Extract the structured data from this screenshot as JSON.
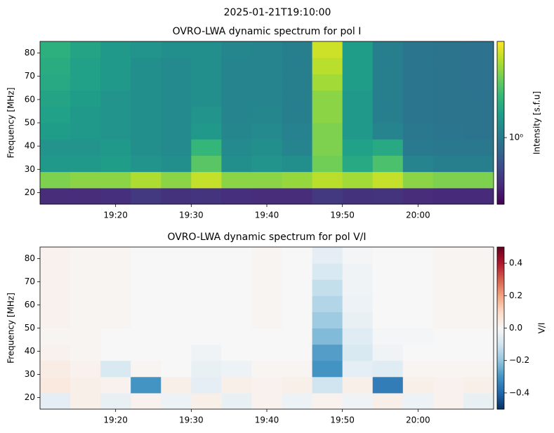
{
  "title": "2025-01-21T19:10:00",
  "chart_data": [
    {
      "type": "heatmap",
      "title": "OVRO-LWA dynamic spectrum for pol I",
      "ylabel": "Frequency [MHz]",
      "colorbar_label": "Intensity [s.f.u]",
      "colormap": "viridis",
      "color_scale": "log",
      "clim": [
        0.42,
        3.5
      ],
      "cbar_ticks": [
        {
          "value": 1,
          "label": "10⁰"
        }
      ],
      "x": [
        "19:10",
        "19:14",
        "19:18",
        "19:22",
        "19:26",
        "19:30",
        "19:34",
        "19:38",
        "19:42",
        "19:46",
        "19:50",
        "19:54",
        "19:58",
        "20:02",
        "20:06"
      ],
      "y": [
        15,
        22,
        29,
        36,
        43,
        50,
        57,
        64,
        71,
        78
      ],
      "xlim": [
        "19:10",
        "20:10"
      ],
      "xticks": [
        "19:20",
        "19:30",
        "19:40",
        "19:50",
        "20:00"
      ],
      "ylim": [
        15,
        85
      ],
      "yticks": [
        20,
        30,
        40,
        50,
        60,
        70,
        80
      ],
      "values": [
        [
          0.55,
          0.55,
          0.56,
          0.6,
          0.57,
          0.58,
          0.56,
          0.55,
          0.55,
          0.6,
          0.57,
          0.58,
          0.55,
          0.54,
          0.54
        ],
        [
          2.3,
          2.4,
          2.4,
          2.7,
          2.4,
          2.9,
          2.4,
          2.4,
          2.5,
          2.8,
          2.6,
          2.9,
          2.4,
          2.3,
          2.3
        ],
        [
          1.3,
          1.3,
          1.35,
          1.25,
          1.2,
          2.0,
          1.2,
          1.25,
          1.2,
          2.2,
          1.5,
          1.9,
          1.1,
          1.05,
          1.05
        ],
        [
          1.25,
          1.25,
          1.3,
          1.2,
          1.15,
          1.7,
          1.15,
          1.2,
          1.1,
          2.3,
          1.4,
          1.5,
          1.0,
          0.98,
          0.98
        ],
        [
          1.35,
          1.3,
          1.25,
          1.2,
          1.15,
          1.3,
          1.12,
          1.15,
          1.08,
          2.3,
          1.3,
          1.1,
          0.98,
          0.96,
          0.95
        ],
        [
          1.4,
          1.3,
          1.25,
          1.2,
          1.15,
          1.25,
          1.1,
          1.12,
          1.05,
          2.4,
          1.3,
          1.05,
          0.97,
          0.95,
          0.95
        ],
        [
          1.45,
          1.35,
          1.25,
          1.2,
          1.15,
          1.2,
          1.1,
          1.1,
          1.05,
          2.4,
          1.3,
          1.05,
          0.96,
          0.94,
          0.94
        ],
        [
          1.5,
          1.4,
          1.3,
          1.2,
          1.15,
          1.2,
          1.1,
          1.1,
          1.05,
          2.6,
          1.35,
          1.05,
          0.96,
          0.94,
          0.93
        ],
        [
          1.55,
          1.4,
          1.3,
          1.2,
          1.15,
          1.2,
          1.1,
          1.1,
          1.05,
          2.8,
          1.35,
          1.05,
          0.96,
          0.94,
          0.93
        ],
        [
          1.6,
          1.45,
          1.3,
          1.25,
          1.2,
          1.2,
          1.12,
          1.1,
          1.05,
          3.0,
          1.35,
          1.05,
          0.97,
          0.94,
          0.93
        ]
      ]
    },
    {
      "type": "heatmap",
      "title": "OVRO-LWA dynamic spectrum for pol V/I",
      "ylabel": "Frequency [MHz]",
      "colorbar_label": "V/I",
      "colormap": "RdBu_r",
      "color_scale": "linear",
      "clim": [
        -0.5,
        0.5
      ],
      "cbar_ticks": [
        {
          "value": -0.4,
          "label": "−0.4"
        },
        {
          "value": -0.2,
          "label": "−0.2"
        },
        {
          "value": 0,
          "label": "0.0"
        },
        0.2,
        0.4
      ],
      "x": [
        "19:10",
        "19:14",
        "19:18",
        "19:22",
        "19:26",
        "19:30",
        "19:34",
        "19:38",
        "19:42",
        "19:46",
        "19:50",
        "19:54",
        "19:58",
        "20:02",
        "20:06"
      ],
      "y": [
        15,
        22,
        29,
        36,
        43,
        50,
        57,
        64,
        71,
        78
      ],
      "xlim": [
        "19:10",
        "20:10"
      ],
      "xticks": [
        "19:20",
        "19:30",
        "19:40",
        "19:50",
        "20:00"
      ],
      "ylim": [
        15,
        85
      ],
      "yticks": [
        20,
        30,
        40,
        50,
        60,
        70,
        80
      ],
      "values": [
        [
          -0.05,
          0.03,
          -0.04,
          0.02,
          -0.03,
          0.03,
          -0.04,
          0.02,
          -0.03,
          0.02,
          -0.02,
          0.03,
          -0.03,
          0.02,
          -0.04
        ],
        [
          0.05,
          0.03,
          0.02,
          -0.3,
          0.03,
          -0.05,
          0.03,
          0.02,
          0.03,
          -0.1,
          0.03,
          -0.35,
          0.03,
          0.02,
          0.03
        ],
        [
          0.04,
          0.02,
          -0.08,
          0.01,
          0,
          -0.04,
          -0.03,
          0.01,
          0.01,
          -0.3,
          -0.05,
          -0.06,
          0.01,
          0.01,
          0.01
        ],
        [
          0.02,
          0.01,
          0,
          0,
          0,
          -0.02,
          0,
          0,
          0,
          -0.28,
          -0.08,
          -0.02,
          0,
          0,
          0
        ],
        [
          0.01,
          0.01,
          0,
          0,
          0,
          0,
          0,
          0,
          0,
          -0.22,
          -0.06,
          -0.01,
          -0.01,
          0,
          0
        ],
        [
          0.02,
          0.01,
          0.01,
          0,
          0,
          0,
          0,
          0.01,
          0,
          -0.18,
          -0.04,
          0,
          0,
          0.01,
          0.01
        ],
        [
          0.02,
          0.01,
          0.01,
          0,
          0,
          0,
          0,
          0.01,
          0,
          -0.15,
          -0.03,
          0,
          0,
          0.01,
          0.01
        ],
        [
          0.02,
          0.01,
          0.01,
          0,
          0,
          0,
          0,
          0.01,
          0,
          -0.12,
          -0.02,
          0,
          0,
          0.01,
          0.01
        ],
        [
          0.02,
          0.01,
          0.01,
          0,
          0,
          0,
          0,
          0.01,
          0,
          -0.08,
          -0.02,
          0,
          0,
          0.01,
          0.01
        ],
        [
          0.02,
          0.01,
          0.01,
          0,
          0,
          0,
          0,
          0.01,
          0,
          -0.05,
          -0.01,
          0,
          0,
          0.01,
          0.01
        ]
      ]
    }
  ]
}
